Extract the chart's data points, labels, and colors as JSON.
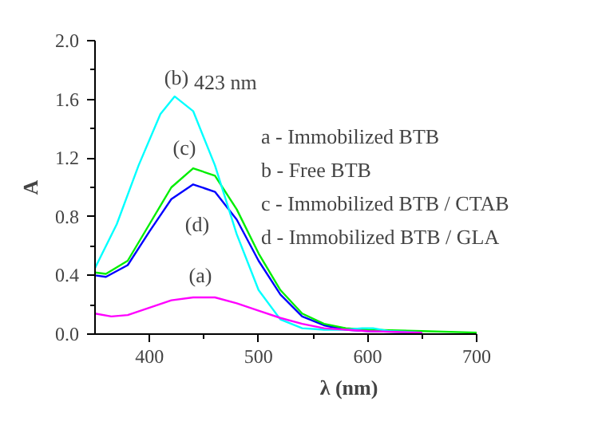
{
  "chart_data": {
    "type": "line",
    "xlabel": "λ (nm)",
    "ylabel": "A",
    "xlim": [
      350,
      700
    ],
    "ylim": [
      0,
      2.0
    ],
    "xticks": [
      400,
      500,
      600,
      700
    ],
    "yticks": [
      {
        "value": 0,
        "label": "0.0"
      },
      {
        "value": 0.4,
        "label": "0.4"
      },
      {
        "value": 0.8,
        "label": "0.8"
      },
      {
        "value": 1.2,
        "label": "1.2"
      },
      {
        "value": 1.6,
        "label": "1.6"
      },
      {
        "value": 2.0,
        "label": "2.0"
      }
    ],
    "grid": false,
    "line_style": "solid",
    "marker": "none",
    "series": [
      {
        "color": "#ff00ff",
        "x": [
          350,
          365,
          380,
          400,
          420,
          440,
          460,
          480,
          500,
          520,
          540,
          560,
          580,
          600,
          650
        ],
        "values": [
          0.14,
          0.12,
          0.13,
          0.18,
          0.23,
          0.25,
          0.25,
          0.21,
          0.16,
          0.11,
          0.07,
          0.04,
          0.03,
          0.02,
          0.01
        ]
      },
      {
        "color": "#00ffff",
        "x": [
          350,
          370,
          390,
          410,
          423,
          440,
          460,
          480,
          500,
          520,
          540,
          560,
          580,
          595,
          605,
          620,
          650
        ],
        "values": [
          0.45,
          0.75,
          1.15,
          1.5,
          1.62,
          1.52,
          1.15,
          0.68,
          0.3,
          0.1,
          0.04,
          0.03,
          0.03,
          0.04,
          0.04,
          0.02,
          0.01
        ]
      },
      {
        "color": "#00ee00",
        "x": [
          350,
          360,
          380,
          400,
          420,
          440,
          460,
          480,
          500,
          520,
          540,
          560,
          580,
          600,
          650,
          700
        ],
        "values": [
          0.42,
          0.41,
          0.5,
          0.75,
          1.0,
          1.13,
          1.08,
          0.85,
          0.55,
          0.3,
          0.14,
          0.07,
          0.04,
          0.03,
          0.02,
          0.01
        ]
      },
      {
        "color": "#0000ff",
        "x": [
          350,
          360,
          380,
          400,
          420,
          440,
          460,
          480,
          500,
          520,
          540,
          560,
          580,
          600,
          650
        ],
        "values": [
          0.4,
          0.39,
          0.47,
          0.7,
          0.92,
          1.02,
          0.97,
          0.78,
          0.5,
          0.27,
          0.12,
          0.06,
          0.03,
          0.02,
          0.01
        ]
      }
    ],
    "annotations": [
      "(b)",
      "423 nm",
      "(c)",
      "(d)",
      "(a)",
      "a - Immobilized BTB",
      "b - Free BTB",
      "c - Immobilized BTB / CTAB",
      "d - Immobilized BTB / GLA"
    ]
  }
}
